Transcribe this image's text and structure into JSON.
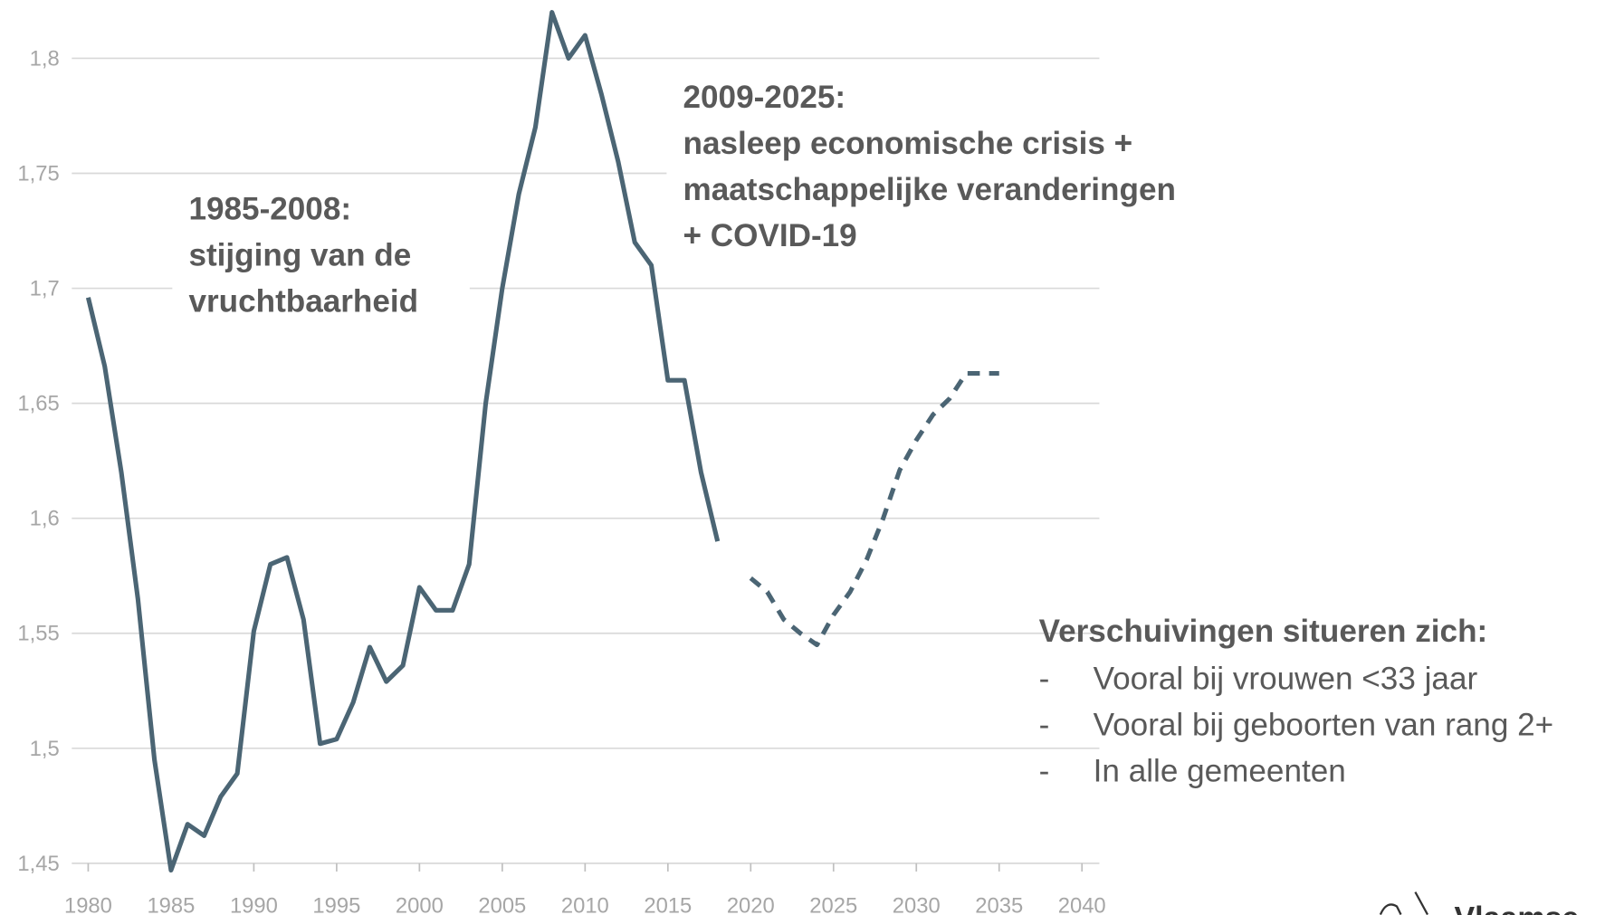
{
  "chart_data": {
    "type": "line",
    "x": [
      1980,
      1981,
      1982,
      1983,
      1984,
      1985,
      1986,
      1987,
      1988,
      1989,
      1990,
      1991,
      1992,
      1993,
      1994,
      1995,
      1996,
      1997,
      1998,
      1999,
      2000,
      2001,
      2002,
      2003,
      2004,
      2005,
      2006,
      2007,
      2008,
      2009,
      2010,
      2011,
      2012,
      2013,
      2014,
      2015,
      2016,
      2017,
      2018,
      2019,
      2020,
      2021,
      2022,
      2023,
      2024,
      2025,
      2026,
      2027,
      2028,
      2029,
      2030,
      2031,
      2032,
      2033,
      2034,
      2035
    ],
    "series": [
      {
        "color": "#4b6574",
        "style": "solid",
        "values": [
          1.696,
          1.666,
          1.62,
          1.565,
          1.495,
          1.447,
          1.467,
          1.462,
          1.479,
          1.489,
          1.551,
          1.58,
          1.583,
          1.556,
          1.502,
          1.504,
          1.52,
          1.544,
          1.529,
          1.536,
          1.57,
          1.56,
          1.56,
          1.58,
          1.65,
          1.7,
          1.741,
          1.77,
          1.82,
          1.8,
          1.81,
          1.784,
          1.755,
          1.72,
          1.71,
          1.66,
          1.66,
          1.62,
          1.59,
          null,
          null,
          null,
          null,
          null,
          null,
          null,
          null,
          null,
          null,
          null,
          null,
          null,
          null,
          null,
          null,
          null
        ]
      },
      {
        "color": "#4b6574",
        "style": "dashed",
        "values": [
          null,
          null,
          null,
          null,
          null,
          null,
          null,
          null,
          null,
          null,
          null,
          null,
          null,
          null,
          null,
          null,
          null,
          null,
          null,
          null,
          null,
          null,
          null,
          null,
          null,
          null,
          null,
          null,
          null,
          null,
          null,
          null,
          null,
          null,
          null,
          null,
          null,
          null,
          null,
          null,
          1.574,
          1.568,
          1.556,
          1.55,
          1.545,
          1.558,
          1.568,
          1.582,
          1.6,
          1.621,
          1.634,
          1.645,
          1.652,
          1.663,
          1.663,
          1.663
        ]
      }
    ],
    "xlim": [
      1980,
      2040
    ],
    "xticks": [
      1980,
      1985,
      1990,
      1995,
      2000,
      2005,
      2010,
      2015,
      2020,
      2025,
      2030,
      2035,
      2040
    ],
    "ylim": [
      1.45,
      1.82
    ],
    "yticks": [
      {
        "value": 1.45,
        "label": "1,45"
      },
      {
        "value": 1.5,
        "label": "1,5"
      },
      {
        "value": 1.55,
        "label": "1,55"
      },
      {
        "value": 1.6,
        "label": "1,6"
      },
      {
        "value": 1.65,
        "label": "1,65"
      },
      {
        "value": 1.7,
        "label": "1,7"
      },
      {
        "value": 1.75,
        "label": "1,75"
      },
      {
        "value": 1.8,
        "label": "1,8"
      }
    ],
    "grid": true,
    "annotations": [
      {
        "lines": [
          "1985-2008:",
          "stijging van de",
          "vruchtbaarheid"
        ]
      },
      {
        "lines": [
          "2009-2025:",
          "nasleep economische crisis +",
          "maatschappelijke veranderingen",
          "+ COVID-19"
        ]
      }
    ],
    "notes": {
      "heading": "Verschuivingen situeren zich:",
      "items": [
        {
          "bullet": "-",
          "text": "Vooral bij vrouwen <33 jaar"
        },
        {
          "bullet": "-",
          "text": "Vooral bij geboorten van rang 2+"
        },
        {
          "bullet": "-",
          "text": "In alle gemeenten"
        }
      ]
    },
    "logo_text": "Vlaamse"
  }
}
